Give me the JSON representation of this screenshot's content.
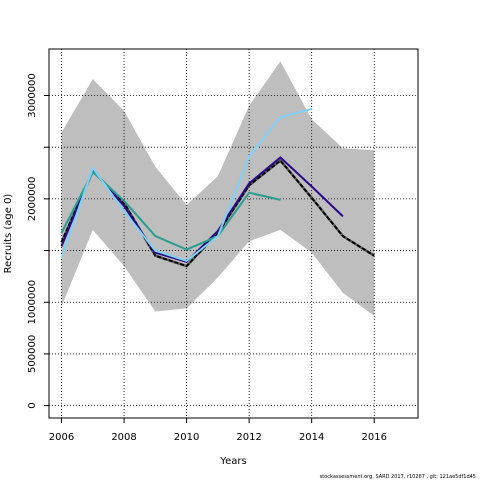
{
  "chart_data": {
    "type": "line",
    "xlabel": "Years",
    "ylabel": "Recruits (age 0)",
    "xlim": [
      2005.6,
      2017.4
    ],
    "ylim": [
      -120000,
      3450000
    ],
    "x_ticks": [
      2006,
      2008,
      2010,
      2012,
      2014,
      2016
    ],
    "x_tick_labels": [
      "2006",
      "2008",
      "2010",
      "2012",
      "2014",
      "2016"
    ],
    "y_ticks": [
      0,
      500000,
      1000000,
      1500000,
      2000000,
      2500000,
      3000000
    ],
    "y_tick_labels": [
      "0",
      "500000",
      "1000000",
      "",
      "2000000",
      "",
      "3000000"
    ],
    "grid": true,
    "confidence_band": {
      "x": [
        2006,
        2007,
        2008,
        2009,
        2010,
        2011,
        2012,
        2013,
        2014,
        2015,
        2016
      ],
      "lower": [
        960000,
        1700000,
        1350000,
        910000,
        940000,
        1240000,
        1590000,
        1700000,
        1480000,
        1090000,
        870000
      ],
      "upper": [
        2640000,
        3160000,
        2850000,
        2310000,
        1940000,
        2220000,
        2900000,
        3330000,
        2770000,
        2490000,
        2470000
      ],
      "color": "#bebebe"
    },
    "series": [
      {
        "x": [
          2006,
          2007,
          2008,
          2009,
          2010,
          2011,
          2012,
          2013,
          2014,
          2015,
          2016
        ],
        "values": [
          1580000,
          2270000,
          1960000,
          1450000,
          1350000,
          1670000,
          2130000,
          2370000,
          2010000,
          1640000,
          1450000
        ],
        "color": "#000000",
        "dashed": true
      },
      {
        "x": [
          2006,
          2007,
          2008,
          2009,
          2010,
          2011,
          2012,
          2013,
          2014,
          2015
        ],
        "values": [
          1540000,
          2280000,
          1930000,
          1480000,
          1390000,
          1690000,
          2150000,
          2400000,
          2120000,
          1830000
        ],
        "color": "#2a0a8a",
        "dashed": false
      },
      {
        "x": [
          2006,
          2007,
          2008,
          2009,
          2010,
          2011,
          2012,
          2013
        ],
        "values": [
          1670000,
          2260000,
          1980000,
          1640000,
          1510000,
          1640000,
          2060000,
          1990000
        ],
        "color": "#2a9d8f",
        "dashed": false
      },
      {
        "x": [
          2006,
          2007,
          2008,
          2009,
          2010,
          2011,
          2012,
          2013,
          2014
        ],
        "values": [
          1430000,
          2300000,
          1880000,
          1500000,
          1400000,
          1640000,
          2410000,
          2790000,
          2870000
        ],
        "color": "#7ed2f7",
        "dashed": false
      }
    ]
  },
  "footer": {
    "credit": "stockassessment.org, SARD 2017, r10267 , git: 121ae5df1d45"
  }
}
